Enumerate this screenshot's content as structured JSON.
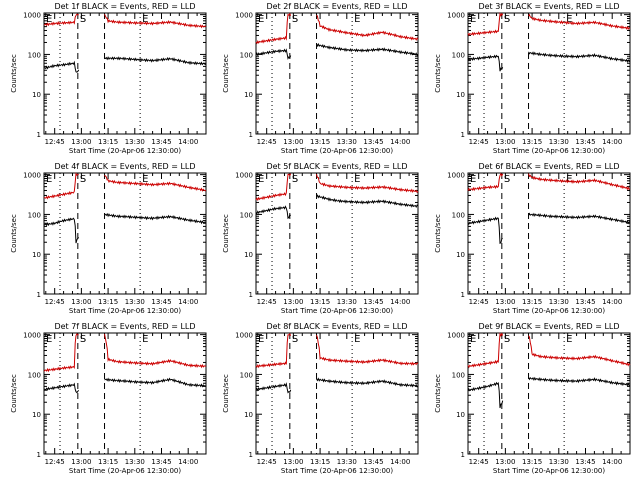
{
  "figure": {
    "xlabel": "Start Time (20-Apr-06 12:30:00)",
    "ylabel": "Counts/sec",
    "x_tick_labels": [
      "12:45",
      "13:00",
      "13:15",
      "13:30",
      "13:45",
      "14:00"
    ],
    "y_tick_labels": [
      "1",
      "10",
      "100",
      "1000"
    ],
    "markers": [
      "E",
      "S",
      "E"
    ]
  },
  "colors": {
    "events": "#000000",
    "lld": "#cc0000",
    "axes": "#000000",
    "background": "#ffffff"
  },
  "chart_data": [
    {
      "type": "line",
      "title": "Det 1f BLACK = Events, RED = LLD",
      "x_unit": "minutes after 12:30",
      "xlim": [
        9,
        100
      ],
      "ylim": [
        1,
        1100
      ],
      "y_scale": "log",
      "dotted_lines": [
        18,
        63
      ],
      "dashed_lines": [
        28,
        43
      ],
      "gap": [
        28,
        43
      ],
      "series": [
        {
          "name": "Events",
          "x": [
            9,
            15,
            20,
            26,
            27,
            43,
            50,
            55,
            60,
            70,
            80,
            90,
            100
          ],
          "values": [
            45,
            52,
            55,
            60,
            35,
            80,
            80,
            78,
            75,
            70,
            78,
            62,
            58
          ]
        },
        {
          "name": "LLD",
          "x": [
            9,
            15,
            20,
            26,
            27,
            43,
            45,
            50,
            60,
            70,
            80,
            90,
            100
          ],
          "values": [
            560,
            600,
            620,
            640,
            1000,
            1000,
            700,
            650,
            620,
            600,
            650,
            540,
            500
          ]
        }
      ]
    },
    {
      "type": "line",
      "title": "Det 2f BLACK = Events, RED = LLD",
      "x_unit": "minutes after 12:30",
      "xlim": [
        9,
        100
      ],
      "ylim": [
        1,
        1100
      ],
      "y_scale": "log",
      "dotted_lines": [
        18,
        63
      ],
      "dashed_lines": [
        28,
        43
      ],
      "gap": [
        28,
        43
      ],
      "series": [
        {
          "name": "Events",
          "x": [
            9,
            15,
            20,
            26,
            27,
            43,
            50,
            55,
            60,
            70,
            80,
            90,
            100
          ],
          "values": [
            100,
            110,
            120,
            125,
            80,
            175,
            150,
            140,
            130,
            125,
            135,
            115,
            100
          ]
        },
        {
          "name": "LLD",
          "x": [
            9,
            15,
            20,
            26,
            27,
            43,
            45,
            50,
            60,
            70,
            80,
            90,
            100
          ],
          "values": [
            200,
            220,
            240,
            260,
            1000,
            1000,
            520,
            420,
            350,
            300,
            360,
            280,
            240
          ]
        }
      ]
    },
    {
      "type": "line",
      "title": "Det 3f BLACK = Events, RED = LLD",
      "x_unit": "minutes after 12:30",
      "xlim": [
        9,
        100
      ],
      "ylim": [
        1,
        1100
      ],
      "y_scale": "log",
      "dotted_lines": [
        18,
        63
      ],
      "dashed_lines": [
        28,
        43
      ],
      "gap": [
        28,
        43
      ],
      "series": [
        {
          "name": "Events",
          "x": [
            9,
            15,
            20,
            26,
            27,
            43,
            50,
            55,
            60,
            70,
            80,
            90,
            100
          ],
          "values": [
            75,
            80,
            85,
            90,
            40,
            110,
            100,
            95,
            92,
            88,
            95,
            78,
            68
          ]
        },
        {
          "name": "LLD",
          "x": [
            9,
            15,
            20,
            26,
            27,
            43,
            45,
            50,
            60,
            70,
            80,
            90,
            100
          ],
          "values": [
            320,
            340,
            360,
            380,
            1000,
            1000,
            800,
            720,
            650,
            600,
            640,
            520,
            450
          ]
        }
      ]
    },
    {
      "type": "line",
      "title": "Det 4f BLACK = Events, RED = LLD",
      "x_unit": "minutes after 12:30",
      "xlim": [
        9,
        100
      ],
      "ylim": [
        1,
        1100
      ],
      "y_scale": "log",
      "dotted_lines": [
        18,
        63
      ],
      "dashed_lines": [
        28,
        43
      ],
      "gap": [
        28,
        43
      ],
      "series": [
        {
          "name": "Events",
          "x": [
            9,
            15,
            20,
            26,
            27,
            43,
            50,
            55,
            60,
            70,
            80,
            90,
            100
          ],
          "values": [
            55,
            60,
            70,
            78,
            20,
            100,
            90,
            88,
            85,
            80,
            88,
            72,
            62
          ]
        },
        {
          "name": "LLD",
          "x": [
            9,
            15,
            20,
            26,
            27,
            43,
            45,
            50,
            60,
            70,
            80,
            90,
            100
          ],
          "values": [
            260,
            290,
            320,
            360,
            1000,
            1000,
            700,
            640,
            600,
            560,
            600,
            480,
            400
          ]
        }
      ]
    },
    {
      "type": "line",
      "title": "Det 5f BLACK = Events, RED = LLD",
      "x_unit": "minutes after 12:30",
      "xlim": [
        9,
        100
      ],
      "ylim": [
        1,
        1100
      ],
      "y_scale": "log",
      "dotted_lines": [
        18,
        63
      ],
      "dashed_lines": [
        28,
        43
      ],
      "gap": [
        28,
        43
      ],
      "series": [
        {
          "name": "Events",
          "x": [
            9,
            15,
            20,
            26,
            27,
            43,
            50,
            55,
            60,
            70,
            80,
            90,
            100
          ],
          "values": [
            110,
            125,
            140,
            150,
            80,
            290,
            240,
            220,
            210,
            200,
            215,
            180,
            160
          ]
        },
        {
          "name": "LLD",
          "x": [
            9,
            15,
            20,
            26,
            27,
            43,
            45,
            50,
            60,
            70,
            80,
            90,
            100
          ],
          "values": [
            240,
            270,
            300,
            330,
            1000,
            1000,
            600,
            520,
            480,
            460,
            490,
            420,
            380
          ]
        }
      ]
    },
    {
      "type": "line",
      "title": "Det 6f BLACK = Events, RED = LLD",
      "x_unit": "minutes after 12:30",
      "xlim": [
        9,
        100
      ],
      "ylim": [
        1,
        1100
      ],
      "y_scale": "log",
      "dotted_lines": [
        18,
        63
      ],
      "dashed_lines": [
        28,
        43
      ],
      "gap": [
        28,
        43
      ],
      "series": [
        {
          "name": "Events",
          "x": [
            9,
            15,
            20,
            26,
            27,
            43,
            50,
            55,
            60,
            70,
            80,
            90,
            100
          ],
          "values": [
            60,
            66,
            72,
            80,
            18,
            100,
            95,
            90,
            88,
            84,
            90,
            75,
            62
          ]
        },
        {
          "name": "LLD",
          "x": [
            9,
            15,
            20,
            26,
            27,
            43,
            45,
            50,
            60,
            70,
            80,
            90,
            100
          ],
          "values": [
            420,
            450,
            480,
            500,
            1000,
            1000,
            850,
            760,
            700,
            660,
            720,
            560,
            440
          ]
        }
      ]
    },
    {
      "type": "line",
      "title": "Det 7f BLACK = Events, RED = LLD",
      "x_unit": "minutes after 12:30",
      "xlim": [
        9,
        100
      ],
      "ylim": [
        1,
        1100
      ],
      "y_scale": "log",
      "dotted_lines": [
        18,
        63
      ],
      "dashed_lines": [
        28,
        43
      ],
      "gap": [
        28,
        43
      ],
      "series": [
        {
          "name": "Events",
          "x": [
            9,
            15,
            20,
            26,
            27,
            43,
            50,
            55,
            60,
            70,
            80,
            90,
            100
          ],
          "values": [
            42,
            46,
            50,
            55,
            35,
            75,
            70,
            68,
            65,
            62,
            75,
            55,
            52
          ]
        },
        {
          "name": "LLD",
          "x": [
            9,
            15,
            20,
            26,
            27,
            43,
            45,
            50,
            60,
            70,
            80,
            90,
            100
          ],
          "values": [
            125,
            135,
            145,
            155,
            1000,
            1000,
            240,
            210,
            195,
            185,
            220,
            170,
            160
          ]
        }
      ]
    },
    {
      "type": "line",
      "title": "Det 8f BLACK = Events, RED = LLD",
      "x_unit": "minutes after 12:30",
      "xlim": [
        9,
        100
      ],
      "ylim": [
        1,
        1100
      ],
      "y_scale": "log",
      "dotted_lines": [
        18,
        63
      ],
      "dashed_lines": [
        28,
        43
      ],
      "gap": [
        28,
        43
      ],
      "series": [
        {
          "name": "Events",
          "x": [
            9,
            15,
            20,
            26,
            27,
            43,
            50,
            55,
            60,
            70,
            80,
            90,
            100
          ],
          "values": [
            42,
            46,
            50,
            55,
            35,
            75,
            68,
            65,
            62,
            60,
            68,
            55,
            52
          ]
        },
        {
          "name": "LLD",
          "x": [
            9,
            15,
            20,
            26,
            27,
            43,
            45,
            50,
            60,
            70,
            80,
            90,
            100
          ],
          "values": [
            160,
            170,
            180,
            190,
            1000,
            1000,
            260,
            230,
            215,
            205,
            230,
            190,
            185
          ]
        }
      ]
    },
    {
      "type": "line",
      "title": "Det 9f BLACK = Events, RED = LLD",
      "x_unit": "minutes after 12:30",
      "xlim": [
        9,
        100
      ],
      "ylim": [
        1,
        1100
      ],
      "y_scale": "log",
      "dotted_lines": [
        18,
        63
      ],
      "dashed_lines": [
        28,
        43
      ],
      "gap": [
        28,
        43
      ],
      "series": [
        {
          "name": "Events",
          "x": [
            9,
            15,
            20,
            26,
            27,
            43,
            50,
            55,
            60,
            70,
            80,
            90,
            100
          ],
          "values": [
            40,
            45,
            50,
            60,
            15,
            80,
            75,
            72,
            70,
            68,
            75,
            62,
            55
          ]
        },
        {
          "name": "LLD",
          "x": [
            9,
            15,
            20,
            26,
            27,
            43,
            45,
            50,
            60,
            70,
            80,
            90,
            100
          ],
          "values": [
            160,
            175,
            190,
            210,
            1000,
            1000,
            320,
            280,
            260,
            250,
            280,
            220,
            175
          ]
        }
      ]
    }
  ]
}
